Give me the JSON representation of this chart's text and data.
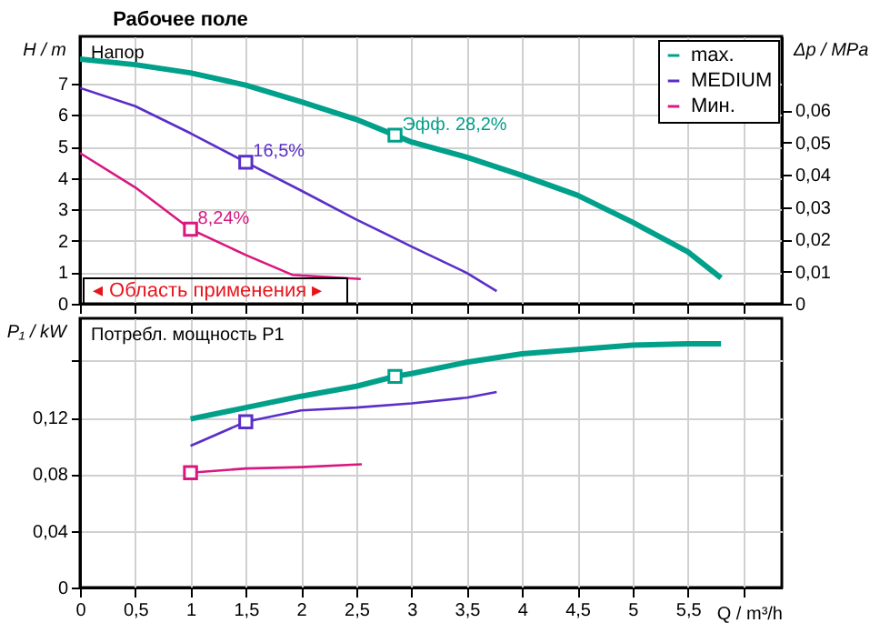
{
  "chart_data": [
    {
      "type": "line",
      "title": "Рабочее поле",
      "ylabel": "H / m",
      "y2label": "Δp / MPa",
      "xlim": [
        0,
        6.35
      ],
      "xticks": [
        0,
        0.5,
        1,
        1.5,
        2,
        2.5,
        3,
        3.5,
        4,
        4.5,
        5,
        5.5,
        6
      ],
      "ylim": [
        0,
        8.5
      ],
      "yticks": [
        0,
        1,
        2,
        3,
        4,
        5,
        6,
        7
      ],
      "y2lim": [
        0,
        0.083
      ],
      "y2ticks": [
        0,
        {
          "value": 0.01,
          "label": "0,01"
        },
        {
          "value": 0.02,
          "label": "0,02"
        },
        {
          "value": 0.03,
          "label": "0,03"
        },
        {
          "value": 0.04,
          "label": "0,04"
        },
        {
          "value": 0.05,
          "label": "0,05"
        },
        {
          "value": 0.06,
          "label": "0,06"
        }
      ],
      "tick_labels": "y",
      "grid": true,
      "legend": "top right",
      "series": [
        {
          "name": "max.",
          "color": "#00a08a",
          "x": [
            0,
            0.5,
            1,
            1.5,
            2,
            2.5,
            2.85,
            3,
            3.5,
            4,
            4.5,
            5,
            5.5,
            5.8
          ],
          "values": [
            7.78,
            7.6,
            7.34,
            6.95,
            6.42,
            5.86,
            5.36,
            5.14,
            4.66,
            4.08,
            3.45,
            2.59,
            1.65,
            0.82
          ]
        },
        {
          "name": "MEDIUM",
          "color": "#5a2fc8",
          "x": [
            0,
            0.5,
            1,
            1.5,
            2,
            2.5,
            3,
            3.5,
            3.77
          ],
          "values": [
            6.86,
            6.28,
            5.42,
            4.5,
            3.6,
            2.68,
            1.82,
            0.98,
            0.4
          ]
        },
        {
          "name": "Мин.",
          "color": "#d8187f",
          "x": [
            0,
            0.5,
            1,
            1.5,
            1.92,
            2.54
          ],
          "values": [
            4.79,
            3.7,
            2.37,
            1.55,
            0.92,
            0.79
          ]
        },
        {
          "type": "scatter",
          "marker": "square",
          "x": [
            2.85,
            1.5,
            1
          ],
          "values": [
            5.36,
            4.5,
            2.37
          ],
          "colors": [
            "#00a08a",
            "#5a2fc8",
            "#d8187f"
          ]
        }
      ],
      "annotations": [
        "Напор",
        "◂ Область применения ▸",
        {
          "text": "Эфф.  28,2%",
          "x": 2.85,
          "y": 5.36
        },
        {
          "text": "16,5%",
          "x": 1.5,
          "y": 4.5
        },
        {
          "text": "8,24%",
          "x": 1,
          "y": 2.37
        }
      ]
    },
    {
      "type": "line",
      "ylabel": "P₁ / kW",
      "xlabel": "Q / m³/h",
      "xlim": [
        0,
        6.35
      ],
      "xticks": [
        0,
        {
          "value": 0.5,
          "label": "0,5"
        },
        1,
        {
          "value": 1.5,
          "label": "1,5"
        },
        2,
        {
          "value": 2.5,
          "label": "2,5"
        },
        3,
        {
          "value": 3.5,
          "label": "3,5"
        },
        4,
        {
          "value": 4.5,
          "label": "4,5"
        },
        5,
        {
          "value": 5.5,
          "label": "5,5"
        },
        {
          "value": 6,
          "label": null
        }
      ],
      "ylim": [
        0,
        0.19
      ],
      "yticks": [
        0,
        {
          "value": 0.04,
          "label": "0,04"
        },
        {
          "value": 0.08,
          "label": "0,08"
        },
        {
          "value": 0.12,
          "label": "0,12"
        },
        {
          "value": 0.16,
          "label": null
        }
      ],
      "grid": true,
      "series": [
        {
          "color": "#00a08a",
          "x": [
            1,
            1.5,
            2,
            2.5,
            2.85,
            3,
            3.5,
            4,
            4.5,
            5,
            5.5,
            5.8
          ],
          "values": [
            0.119,
            0.127,
            0.135,
            0.142,
            0.149,
            0.151,
            0.159,
            0.165,
            0.168,
            0.171,
            0.172,
            0.172
          ]
        },
        {
          "color": "#5a2fc8",
          "x": [
            1,
            1.5,
            2,
            2.5,
            3,
            3.5,
            3.77
          ],
          "values": [
            0.1,
            0.117,
            0.125,
            0.127,
            0.13,
            0.134,
            0.138
          ]
        },
        {
          "color": "#d8187f",
          "x": [
            1,
            1.5,
            2,
            2.55
          ],
          "values": [
            0.081,
            0.084,
            0.085,
            0.087
          ]
        },
        {
          "type": "scatter",
          "marker": "square",
          "x": [
            2.85,
            1.5,
            1
          ],
          "values": [
            0.149,
            0.117,
            0.081
          ],
          "colors": [
            "#00a08a",
            "#5a2fc8",
            "#d8187f"
          ]
        }
      ],
      "annotations": [
        "Потребл. мощность P1"
      ]
    }
  ]
}
